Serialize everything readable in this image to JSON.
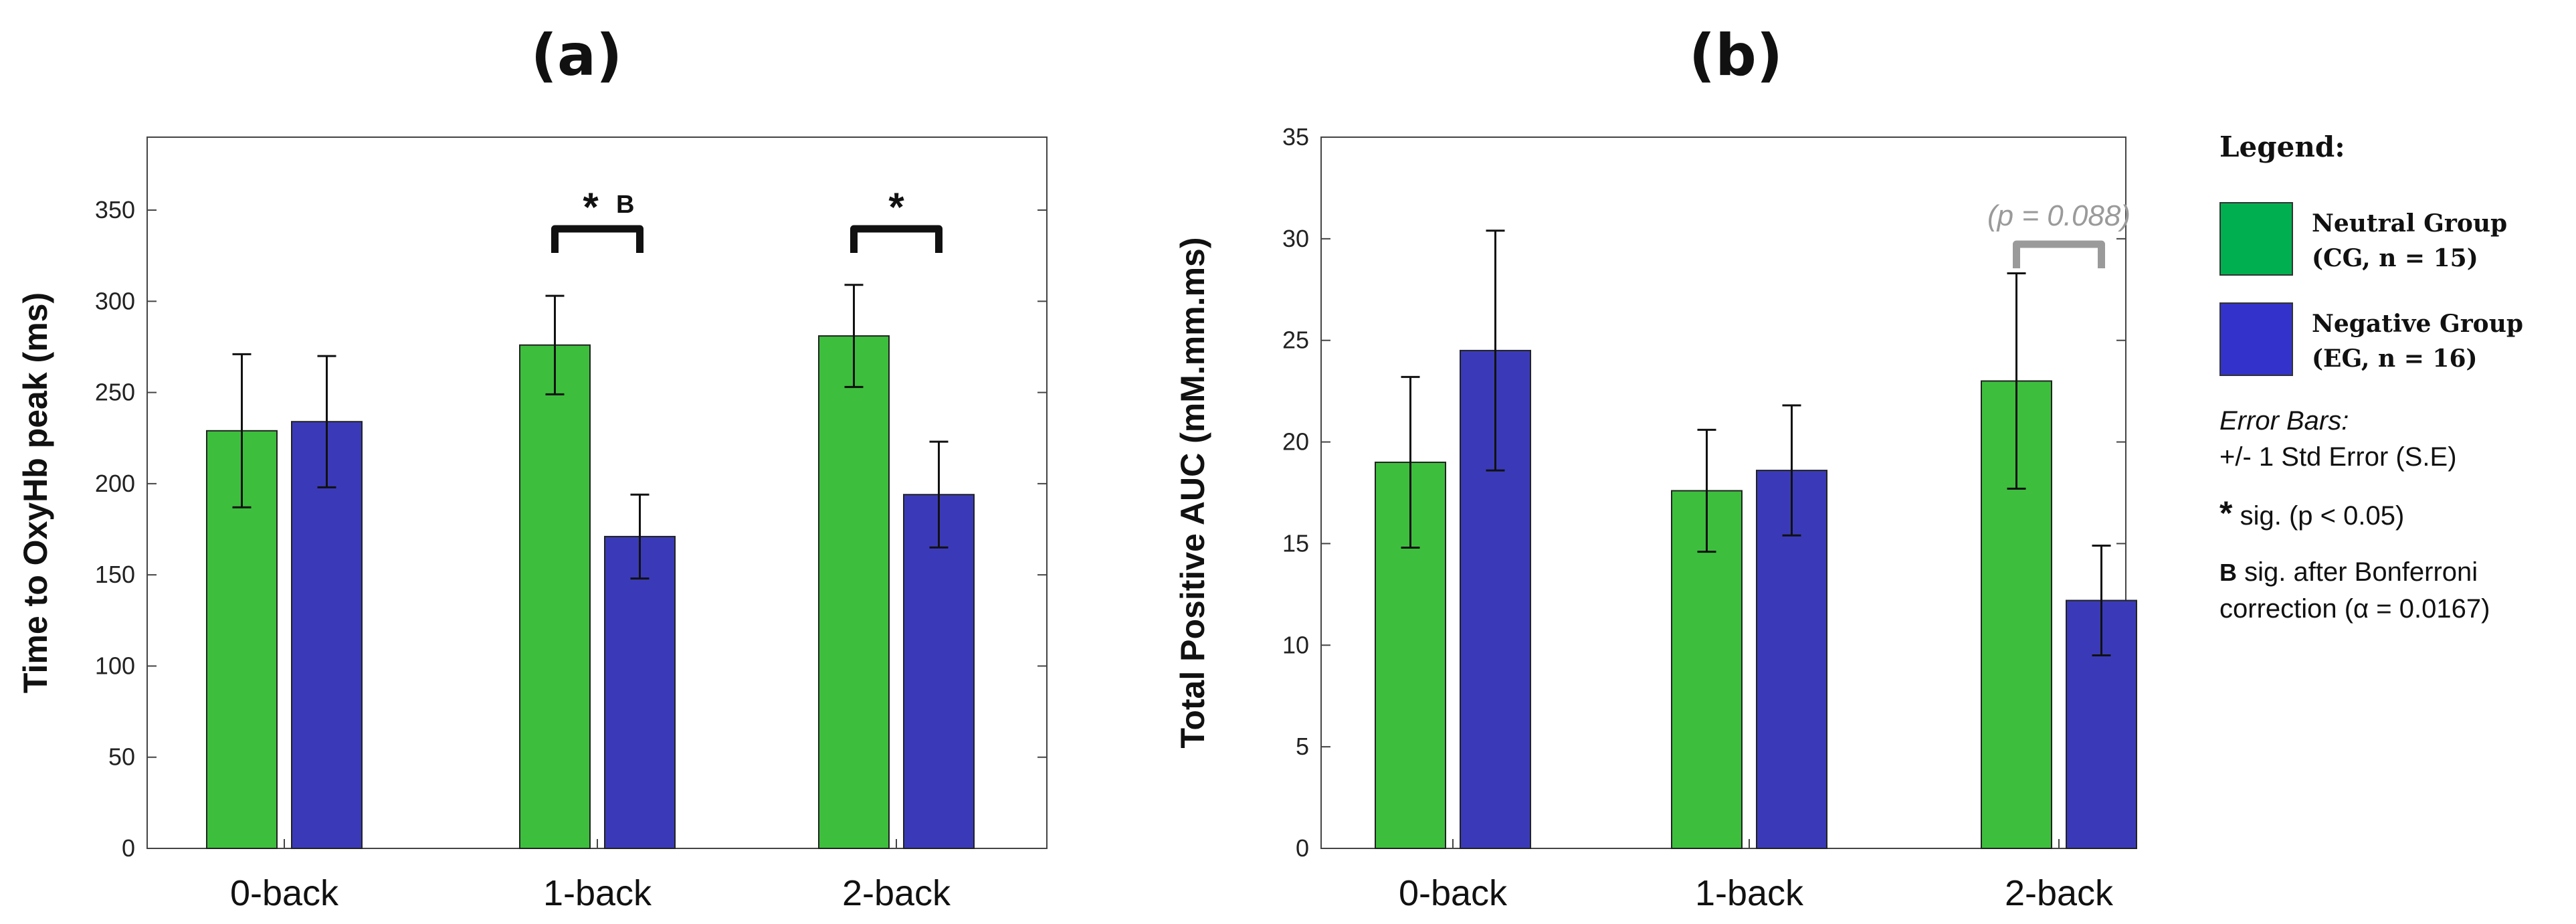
{
  "chart_data": [
    {
      "type": "bar",
      "title": "(a)",
      "xlabel": "",
      "ylabel": "Time to OxyHb peak (ms)",
      "ylim": [
        0,
        390
      ],
      "yticks": [
        0,
        50,
        100,
        150,
        200,
        250,
        300,
        350
      ],
      "categories": [
        "0-back",
        "1-back",
        "2-back"
      ],
      "series": [
        {
          "name": "Neutral Group",
          "color": "#3dbf3d",
          "values": [
            229,
            276,
            281
          ],
          "errors": [
            42,
            27,
            28
          ]
        },
        {
          "name": "Negative Group",
          "color": "#3a3ab8",
          "values": [
            234,
            171,
            194
          ],
          "errors": [
            36,
            23,
            29
          ]
        }
      ],
      "annotations": [
        {
          "category": "1-back",
          "mark": "*",
          "sup": "B",
          "color": "#111111"
        },
        {
          "category": "2-back",
          "mark": "*",
          "sup": "",
          "color": "#111111"
        }
      ]
    },
    {
      "type": "bar",
      "title": "(b)",
      "xlabel": "",
      "ylabel": "Total Positive AUC (mM.mm.ms)",
      "ylim": [
        0,
        35
      ],
      "yticks": [
        0,
        5,
        10,
        15,
        20,
        25,
        30,
        35
      ],
      "categories": [
        "0-back",
        "1-back",
        "2-back"
      ],
      "series": [
        {
          "name": "Neutral Group",
          "color": "#3dbf3d",
          "values": [
            19.0,
            17.6,
            23.0
          ],
          "errors": [
            4.2,
            3.0,
            5.3
          ]
        },
        {
          "name": "Negative Group",
          "color": "#3a3ab8",
          "values": [
            24.5,
            18.6,
            12.2
          ],
          "errors": [
            5.9,
            3.2,
            2.7
          ]
        }
      ],
      "annotations": [
        {
          "category": "2-back",
          "mark": "(p = 0.088)",
          "sup": "",
          "color": "#9a9a9a"
        }
      ]
    }
  ],
  "legend": {
    "title": "Legend:",
    "neutral": {
      "name": "Neutral Group",
      "detail": "(CG, n = 15)",
      "color": "#00b050"
    },
    "negative": {
      "name": "Negative Group",
      "detail": "(EG, n = 16)",
      "color": "#3333cc"
    },
    "error_bars_title": "Error Bars:",
    "error_bars_text": "+/- 1 Std Error (S.E)",
    "star": "*",
    "star_text": "sig. (p < 0.05)",
    "b_mark": "B",
    "b_text_1": "sig. after Bonferroni",
    "b_text_2": "correction (α = 0.0167)"
  }
}
